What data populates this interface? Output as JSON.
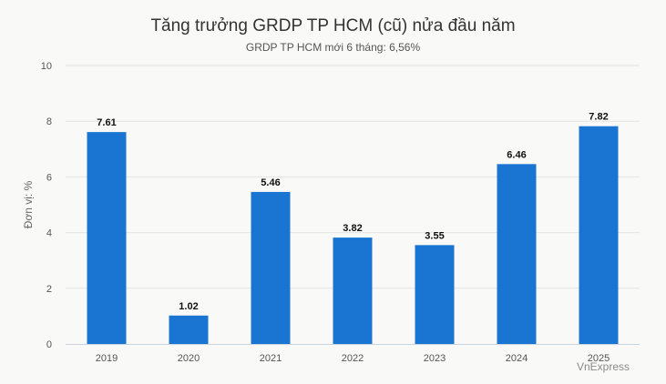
{
  "chart_data": {
    "type": "bar",
    "title": "Tăng trưởng GRDP TP HCM (cũ) nửa đầu năm",
    "subtitle": "GRDP TP HCM mới 6 tháng: 6,56%",
    "xlabel": "",
    "ylabel": "Đơn vị: %",
    "categories": [
      "2019",
      "2020",
      "2021",
      "2022",
      "2023",
      "2024",
      "2025"
    ],
    "values": [
      7.61,
      1.02,
      5.46,
      3.82,
      3.55,
      6.46,
      7.82
    ],
    "data_labels": [
      "7.61",
      "1.02",
      "5.46",
      "3.82",
      "3.55",
      "6.46",
      "7.82"
    ],
    "ylim": [
      0,
      10
    ],
    "yticks": [
      0,
      2,
      4,
      6,
      8,
      10
    ],
    "grid": true,
    "legend": "none",
    "bar_color": "#1a75d2"
  },
  "credit": "VnExpress"
}
